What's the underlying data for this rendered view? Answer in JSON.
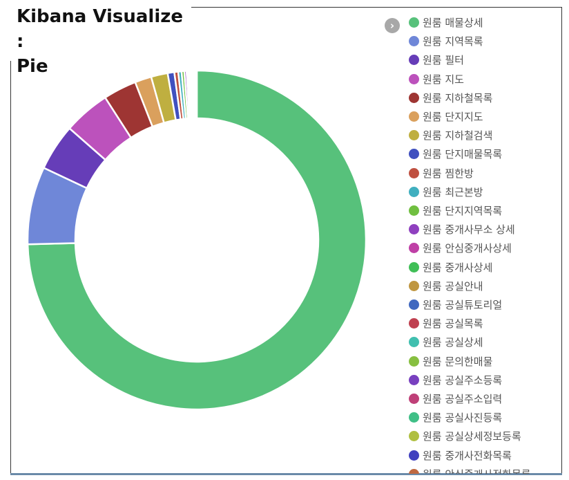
{
  "header": {
    "title": "Kibana Visualize :\nPie"
  },
  "legend": {
    "toggle_icon": "chevron-right-icon",
    "toggle_glyph": "›"
  },
  "chart_data": {
    "type": "pie",
    "donut": true,
    "legend_position": "right",
    "slices": [
      {
        "label": "원룸 매물상세",
        "value": 70.5,
        "color": "#57c17b"
      },
      {
        "label": "원룸 지역목록",
        "value": 7.0,
        "color": "#6f87d8"
      },
      {
        "label": "원룸 필터",
        "value": 4.2,
        "color": "#663db8"
      },
      {
        "label": "원룸 지도",
        "value": 4.2,
        "color": "#bc52bc"
      },
      {
        "label": "원룸 지하철목록",
        "value": 3.0,
        "color": "#9e3533"
      },
      {
        "label": "원룸 단지지도",
        "value": 1.5,
        "color": "#daa05d"
      },
      {
        "label": "원룸 지하철검색",
        "value": 1.5,
        "color": "#bfaf40"
      },
      {
        "label": "원룸 단지매물목록",
        "value": 0.6,
        "color": "#4050bf"
      },
      {
        "label": "원룸 찜한방",
        "value": 0.35,
        "color": "#bf5040"
      },
      {
        "label": "원룸 최근본방",
        "value": 0.3,
        "color": "#40afbf"
      },
      {
        "label": "원룸 단지지역목록",
        "value": 0.25,
        "color": "#70bf40"
      },
      {
        "label": "원룸 중개사무소 상세",
        "value": 0.2,
        "color": "#8f40bf"
      },
      {
        "label": "원룸 안심중개사상세",
        "value": 0.15,
        "color": "#bf40a6"
      },
      {
        "label": "원룸 중개사상세",
        "value": 0.12,
        "color": "#40bf57"
      },
      {
        "label": "원룸 공실안내",
        "value": 0.1,
        "color": "#bf9640"
      },
      {
        "label": "원룸 공실튜토리얼",
        "value": 0.09,
        "color": "#4068bf"
      },
      {
        "label": "원룸 공실목록",
        "value": 0.08,
        "color": "#bf4050"
      },
      {
        "label": "원룸 공실상세",
        "value": 0.07,
        "color": "#40bfaf"
      },
      {
        "label": "원룸 문의한매물",
        "value": 0.06,
        "color": "#87bf40"
      },
      {
        "label": "원룸 공실주소등록",
        "value": 0.05,
        "color": "#7840bf"
      },
      {
        "label": "원룸 공실주소입력",
        "value": 0.05,
        "color": "#bf4078"
      },
      {
        "label": "원룸 공실사진등록",
        "value": 0.04,
        "color": "#40bf87"
      },
      {
        "label": "원룸 공실상세정보등록",
        "value": 0.04,
        "color": "#afbf40"
      },
      {
        "label": "원룸 중개사전화목록",
        "value": 0.03,
        "color": "#4040bf"
      },
      {
        "label": "원룸 안심중개사전화목록",
        "value": 0.03,
        "color": "#bf6840"
      }
    ]
  }
}
